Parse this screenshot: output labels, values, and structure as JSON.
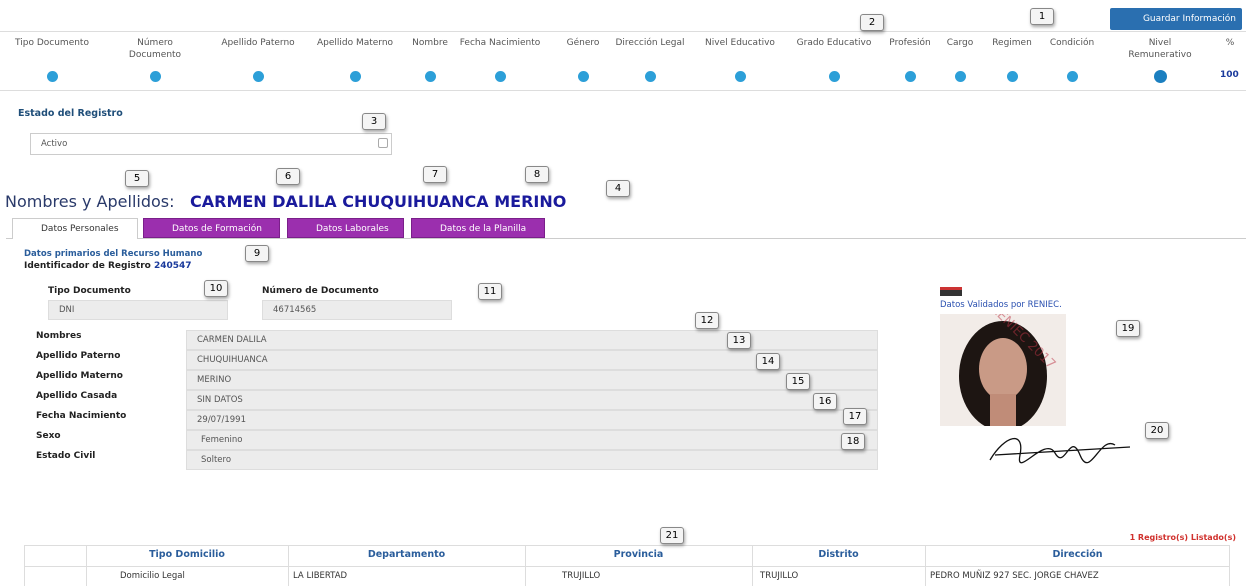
{
  "header_button": "Guardar Información",
  "callouts": [
    "1",
    "2",
    "3",
    "4",
    "5",
    "6",
    "7",
    "8",
    "9",
    "10",
    "11",
    "12",
    "13",
    "14",
    "15",
    "16",
    "17",
    "18",
    "19",
    "20",
    "21"
  ],
  "status_table": {
    "columns": [
      "Tipo Documento",
      "Número Documento",
      "Apellido Paterno",
      "Apellido Materno",
      "Nombre",
      "Fecha Nacimiento",
      "Género",
      "Dirección Legal",
      "Nivel Educativo",
      "Grado Educativo",
      "Profesión",
      "Cargo",
      "Regimen",
      "Condición",
      "Nivel Remunerativo",
      "%"
    ],
    "percent": "100"
  },
  "estado": {
    "label": "Estado del Registro",
    "value": "Activo"
  },
  "names": {
    "label": "Nombres y Apellidos:",
    "value": "CARMEN DALILA CHUQUIHUANCA MERINO"
  },
  "tabs": [
    "Datos Personales",
    "Datos de Formación",
    "Datos Laborales",
    "Datos de la Planilla"
  ],
  "section": {
    "title": "Datos primarios del Recurso Humano",
    "id_label": "Identificador de Registro",
    "id_value": "240547"
  },
  "document": {
    "type_label": "Tipo Documento",
    "type_value": "DNI",
    "number_label": "Número de Documento",
    "number_value": "46714565"
  },
  "fields": [
    {
      "label": "Nombres",
      "value": "CARMEN DALILA"
    },
    {
      "label": "Apellido Paterno",
      "value": "CHUQUIHUANCA"
    },
    {
      "label": "Apellido Materno",
      "value": "MERINO"
    },
    {
      "label": "Apellido Casada",
      "value": "SIN DATOS"
    },
    {
      "label": "Fecha Nacimiento",
      "value": "29/07/1991"
    },
    {
      "label": "Sexo",
      "value": "Femenino"
    },
    {
      "label": "Estado Civil",
      "value": "Soltero"
    }
  ],
  "reniec": "Datos Validados por RENIEC.",
  "address": {
    "count": "1 Registro(s) Listado(s)",
    "headers": [
      "Tipo Domicilio",
      "Departamento",
      "Provincia",
      "Distrito",
      "Dirección"
    ],
    "rows": [
      [
        "Domicilio Legal",
        "LA LIBERTAD",
        "TRUJILLO",
        "TRUJILLO",
        "PEDRO MUÑIZ 927 SEC. JORGE CHAVEZ"
      ]
    ]
  }
}
